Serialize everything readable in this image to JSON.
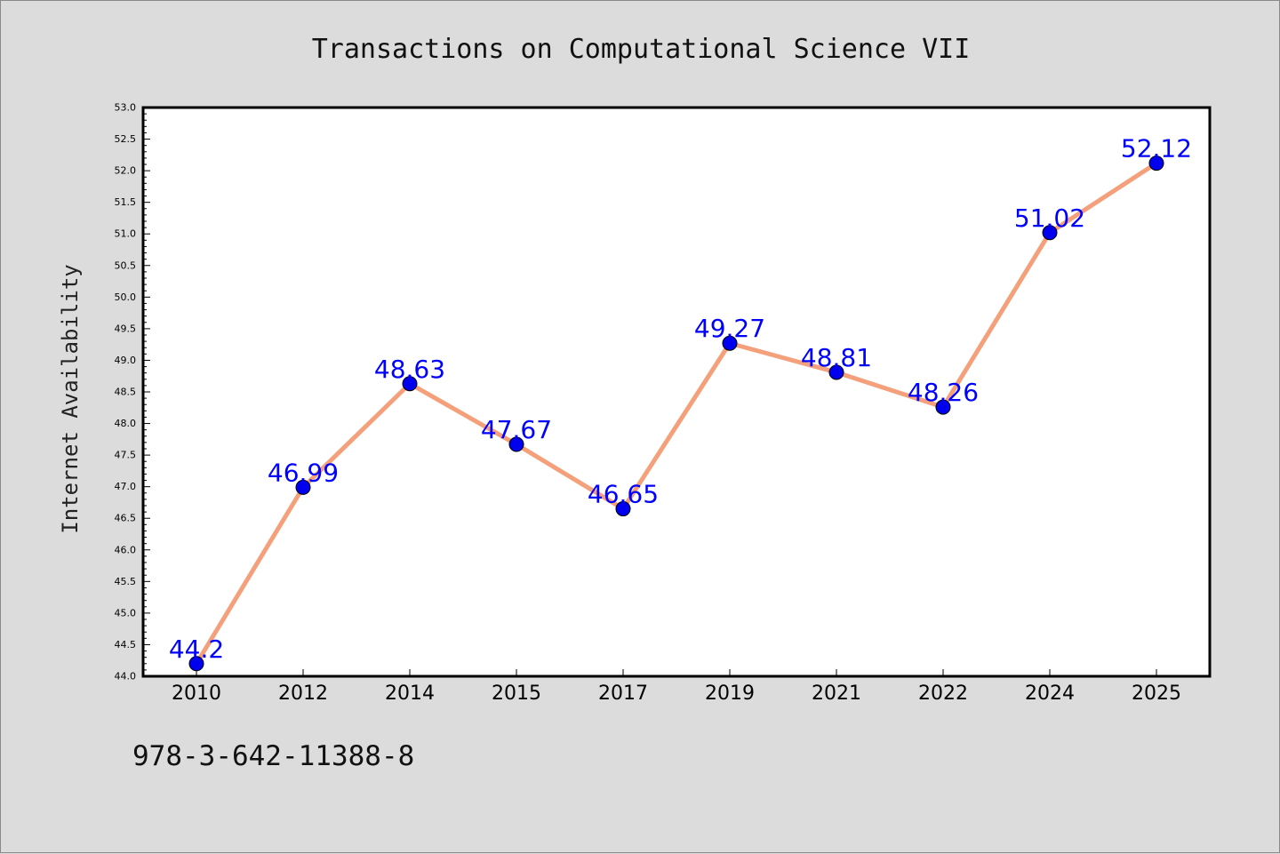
{
  "chart_data": {
    "type": "line",
    "title": "Transactions on Computational Science VII",
    "ylabel": "Internet Availability",
    "xlabel": "",
    "categories": [
      "2010",
      "2012",
      "2014",
      "2015",
      "2017",
      "2019",
      "2021",
      "2022",
      "2024",
      "2025"
    ],
    "series": [
      {
        "values": [
          44.2,
          46.99,
          48.63,
          47.67,
          46.65,
          49.27,
          48.81,
          48.26,
          51.02,
          52.12
        ],
        "data_labels": [
          "44.2",
          "46.99",
          "48.63",
          "47.67",
          "46.65",
          "49.27",
          "48.81",
          "48.26",
          "51.02",
          "52.12"
        ],
        "line_color": "#f4a07a",
        "marker_color": "#0000ee"
      }
    ],
    "ylim": [
      44.0,
      53.0
    ],
    "yticks": [
      "44.0",
      "44.5",
      "45.0",
      "45.5",
      "46.0",
      "46.5",
      "47.0",
      "47.5",
      "48.0",
      "48.5",
      "49.0",
      "49.5",
      "50.0",
      "50.5",
      "51.0",
      "51.5",
      "52.0",
      "52.5",
      "53.0"
    ],
    "grid": false,
    "legend": "none",
    "label_color": "#0000ff",
    "background": "#dcdcdc",
    "plot_background": "#ffffff"
  },
  "footer": {
    "isbn": "978-3-642-11388-8"
  }
}
